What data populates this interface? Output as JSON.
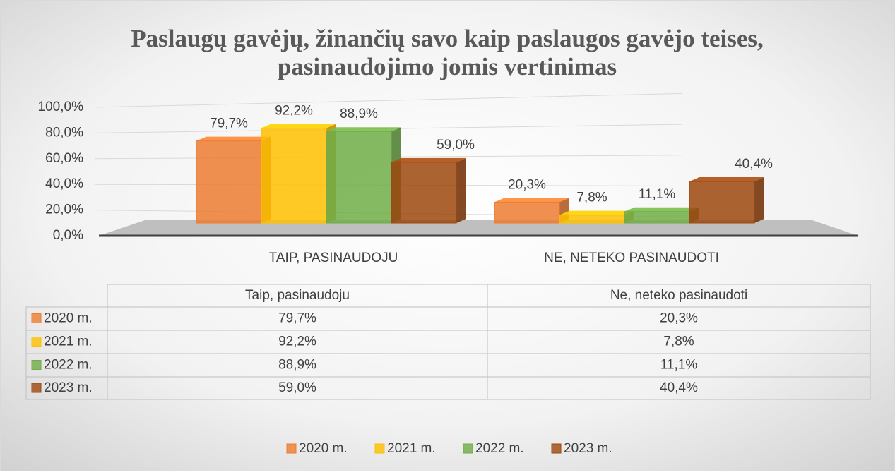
{
  "chart_data": {
    "type": "bar3d",
    "title": [
      "Paslaugų gavėjų, žinančių savo kaip paslaugos gavėjo teises,",
      "pasinaudojimo jomis vertinimas"
    ],
    "categories": [
      "TAIP, PASINAUDOJU",
      "NE, NETEKO PASINAUDOTI"
    ],
    "table_columns": [
      "Taip, pasinaudoju",
      "Ne, neteko pasinaudoti"
    ],
    "series": [
      {
        "name": "2020 m.",
        "color": "#ed7d31",
        "values": [
          79.7,
          20.3
        ],
        "value_labels": [
          "79,7%",
          "20,3%"
        ]
      },
      {
        "name": "2021 m.",
        "color": "#ffc000",
        "values": [
          92.2,
          7.8
        ],
        "value_labels": [
          "92,2%",
          "7,8%"
        ]
      },
      {
        "name": "2022 m.",
        "color": "#70ad47",
        "values": [
          88.9,
          11.1
        ],
        "value_labels": [
          "88,9%",
          "11,1%"
        ]
      },
      {
        "name": "2023 m.",
        "color": "#9e480e",
        "values": [
          59.0,
          40.4
        ],
        "value_labels": [
          "59,0%",
          "40,4%"
        ]
      }
    ],
    "ylim": [
      0,
      100
    ],
    "yticks": [
      {
        "value": 0,
        "label": "0,0%"
      },
      {
        "value": 20,
        "label": "20,0%"
      },
      {
        "value": 40,
        "label": "40,0%"
      },
      {
        "value": 60,
        "label": "60,0%"
      },
      {
        "value": 80,
        "label": "80,0%"
      },
      {
        "value": 100,
        "label": "100,0%"
      }
    ],
    "grid": true,
    "legend": "bottom"
  }
}
